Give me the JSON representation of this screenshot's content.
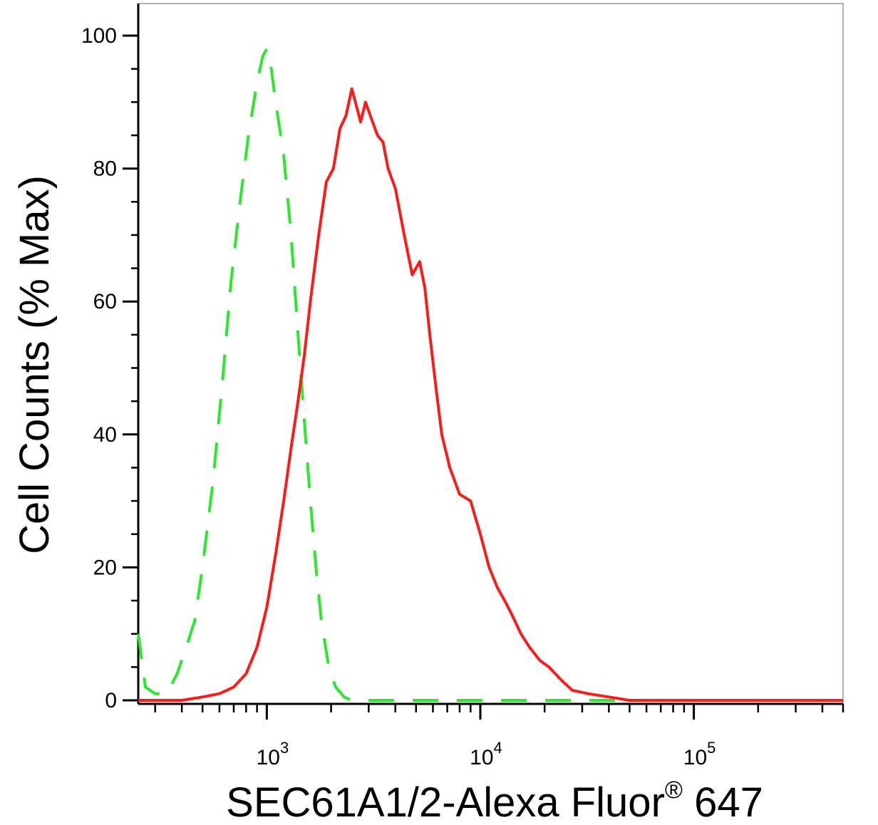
{
  "chart_data": {
    "type": "line",
    "title": "",
    "xlabel": "SEC61A1/2-Alexa Fluor",
    "xlabel_superscript": "®",
    "xlabel_suffix": " 647",
    "ylabel": "Cell Counts (% Max)",
    "x_scale": "log",
    "xlim": [
      250,
      500000
    ],
    "ylim": [
      0,
      105
    ],
    "grid": false,
    "legend": "none",
    "y_ticks": [
      0,
      20,
      40,
      60,
      80,
      100
    ],
    "y_tick_labels": [
      "0",
      "20",
      "40",
      "60",
      "80",
      "100"
    ],
    "x_tick_labels": [
      {
        "value": 1000,
        "base": "10",
        "exp": "3"
      },
      {
        "value": 10000,
        "base": "10",
        "exp": "4"
      },
      {
        "value": 100000,
        "base": "10",
        "exp": "5"
      }
    ],
    "series": [
      {
        "color": "#2ee62e",
        "dash": true,
        "x": [
          250,
          270,
          300,
          340,
          380,
          420,
          460,
          500,
          560,
          620,
          680,
          750,
          820,
          900,
          960,
          1000,
          1050,
          1100,
          1200,
          1300,
          1400,
          1500,
          1600,
          1700,
          1800,
          1950,
          2100,
          2300,
          2500,
          2800,
          3200,
          4000,
          10000,
          100000,
          500000
        ],
        "y": [
          10,
          2,
          1,
          1,
          4,
          8,
          12,
          20,
          33,
          48,
          63,
          75,
          85,
          93,
          97,
          98,
          95,
          90,
          82,
          70,
          55,
          42,
          30,
          20,
          12,
          5,
          2,
          0.5,
          0,
          0,
          0,
          0,
          0,
          0,
          0
        ]
      },
      {
        "color": "#ff1a1a",
        "dash": false,
        "x": [
          250,
          400,
          500,
          600,
          700,
          800,
          900,
          1000,
          1100,
          1200,
          1300,
          1400,
          1500,
          1600,
          1750,
          1900,
          2050,
          2200,
          2350,
          2500,
          2600,
          2750,
          2900,
          3050,
          3300,
          3500,
          3700,
          4000,
          4400,
          4800,
          5200,
          5500,
          5800,
          6200,
          6600,
          7200,
          8000,
          9000,
          10000,
          11000,
          12000,
          13000,
          14000,
          15500,
          17000,
          19000,
          21000,
          24000,
          27000,
          32000,
          40000,
          50000,
          60000,
          100000,
          500000
        ],
        "y": [
          0,
          0,
          0.5,
          1,
          2,
          4,
          8,
          14,
          22,
          30,
          38,
          45,
          52,
          60,
          70,
          78,
          80,
          86,
          88,
          92,
          90,
          87,
          90,
          88,
          85,
          84,
          80,
          77,
          70,
          64,
          66,
          62,
          55,
          47,
          40,
          35,
          31,
          30,
          25,
          20,
          17,
          15,
          13,
          10,
          8,
          6,
          5,
          3,
          1.5,
          1,
          0.5,
          0,
          0,
          0,
          0
        ]
      }
    ]
  }
}
